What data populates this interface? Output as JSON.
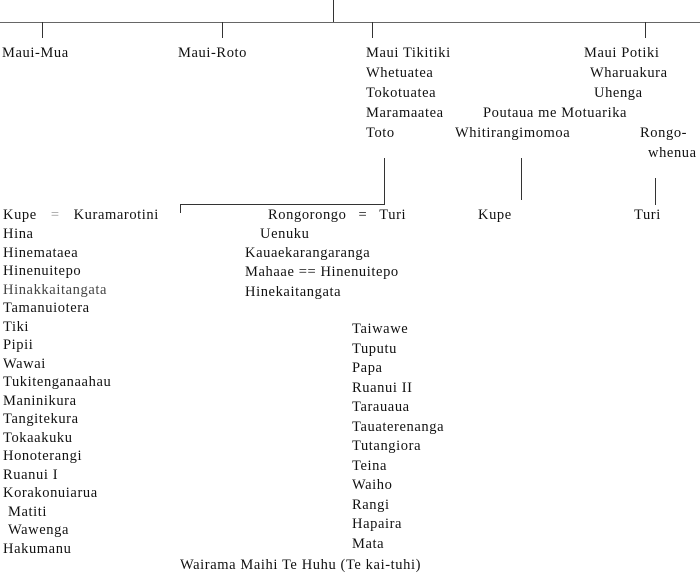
{
  "generation_top": [
    "Maui-Mua",
    "Maui-Roto",
    "Maui Tikitiki",
    "Maui Potiki"
  ],
  "tikitiki_line": [
    "Whetuatea",
    "Tokotuatea",
    "Maramaatea",
    "Toto"
  ],
  "potiki_line": [
    "Wharuakura",
    "Uhenga",
    "Poutaua me Motuarika",
    "Whitirangimomoa",
    "Rongo-",
    "whenua"
  ],
  "children_row": {
    "kupe": "Kupe",
    "eq1": "=",
    "kuramarotini": "Kuramarotini",
    "rongorongo": "Rongorongo",
    "eq2": "=",
    "turi": "Turi",
    "kupe2": "Kupe",
    "turi2": "Turi"
  },
  "left_column": [
    "Hina",
    "Hinemataea",
    "Hinenuitepo",
    "Hinakkaitangata",
    "Tamanuiotera",
    "Tiki",
    "Pipii",
    "Wawai",
    "Tukitenganaahau",
    "Maninikura",
    "Tangitekura",
    "Tokaakuku",
    "Honoterangi",
    "Ruanui I",
    "Korakonuiarua",
    "Matiti",
    "Wawenga",
    "Hakumanu"
  ],
  "middle_column": [
    "Uenuku",
    "Kauaekarangaranga",
    "Mahaae == Hinenuitepo",
    "Hinekaitangata"
  ],
  "right_column": [
    "Taiwawe",
    "Tuputu",
    "Papa",
    "Ruanui II",
    "Tarauaua",
    "Tauaterenanga",
    "Tutangiora",
    "Teina",
    "Waiho",
    "Rangi",
    "Hapaira",
    "Mata"
  ],
  "signature": "Wairama Maihi Te Huhu (Te kai-tuhi)"
}
